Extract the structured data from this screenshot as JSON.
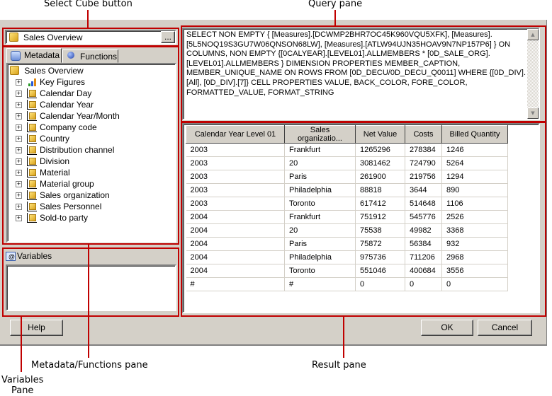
{
  "callouts": {
    "select_cube": "Select Cube button",
    "query_pane": "Query pane",
    "metadata_pane": "Metadata/Functions pane",
    "variables_pane": "Variables\nPane",
    "result_pane": "Result pane"
  },
  "cube_selector": {
    "value": "Sales Overview",
    "browse_label": "..."
  },
  "tabs": [
    {
      "label": "Metadata",
      "active": true
    },
    {
      "label": "Functions",
      "active": false
    }
  ],
  "tree": {
    "root": "Sales Overview",
    "items": [
      {
        "label": "Key Figures",
        "icon": "key-figures-icon"
      },
      {
        "label": "Calendar Day",
        "icon": "dimension-icon"
      },
      {
        "label": "Calendar Year",
        "icon": "dimension-icon"
      },
      {
        "label": "Calendar Year/Month",
        "icon": "dimension-icon"
      },
      {
        "label": "Company code",
        "icon": "dimension-icon"
      },
      {
        "label": "Country",
        "icon": "dimension-icon"
      },
      {
        "label": "Distribution channel",
        "icon": "dimension-icon"
      },
      {
        "label": "Division",
        "icon": "dimension-icon"
      },
      {
        "label": "Material",
        "icon": "dimension-icon"
      },
      {
        "label": "Material group",
        "icon": "dimension-icon"
      },
      {
        "label": "Sales organization",
        "icon": "dimension-icon"
      },
      {
        "label": "Sales Personnel",
        "icon": "dimension-icon"
      },
      {
        "label": "Sold-to party",
        "icon": "dimension-icon"
      }
    ]
  },
  "variables": {
    "label": "Variables"
  },
  "query": "SELECT NON EMPTY { [Measures].[DCWMP2BHR7OC45K960VQU5XFK], [Measures].[5L5NOQ19S3GU7W06QNSON68LW], [Measures].[ATLW94UJN35HOAV9N7NP157P6] } ON COLUMNS, NON EMPTY {[0CALYEAR].[LEVEL01].ALLMEMBERS * [0D_SALE_ORG].[LEVEL01].ALLMEMBERS } DIMENSION PROPERTIES MEMBER_CAPTION, MEMBER_UNIQUE_NAME ON ROWS FROM [0D_DECU/0D_DECU_Q0011] WHERE {[0D_DIV].[All], [0D_DIV].[7]} CELL PROPERTIES VALUE, BACK_COLOR, FORE_COLOR, FORMATTED_VALUE, FORMAT_STRING",
  "result": {
    "columns": [
      "Calendar Year Level 01",
      "Sales organizatio...",
      "Net Value",
      "Costs",
      "Billed Quantity"
    ],
    "rows": [
      [
        "2003",
        "Frankfurt",
        "1265296",
        "278384",
        "1246"
      ],
      [
        "2003",
        "20",
        "3081462",
        "724790",
        "5264"
      ],
      [
        "2003",
        "Paris",
        "261900",
        "219756",
        "1294"
      ],
      [
        "2003",
        "Philadelphia",
        "88818",
        "3644",
        "890"
      ],
      [
        "2003",
        "Toronto",
        "617412",
        "514648",
        "1106"
      ],
      [
        "2004",
        "Frankfurt",
        "751912",
        "545776",
        "2526"
      ],
      [
        "2004",
        "20",
        "75538",
        "49982",
        "3368"
      ],
      [
        "2004",
        "Paris",
        "75872",
        "56384",
        "932"
      ],
      [
        "2004",
        "Philadelphia",
        "975736",
        "711206",
        "2968"
      ],
      [
        "2004",
        "Toronto",
        "551046",
        "400684",
        "3556"
      ],
      [
        "#",
        "#",
        "0",
        "0",
        "0"
      ]
    ]
  },
  "buttons": {
    "help": "Help",
    "ok": "OK",
    "cancel": "Cancel"
  },
  "colors": {
    "highlight": "#c00000",
    "dialog_bg": "#d4d0c8"
  }
}
